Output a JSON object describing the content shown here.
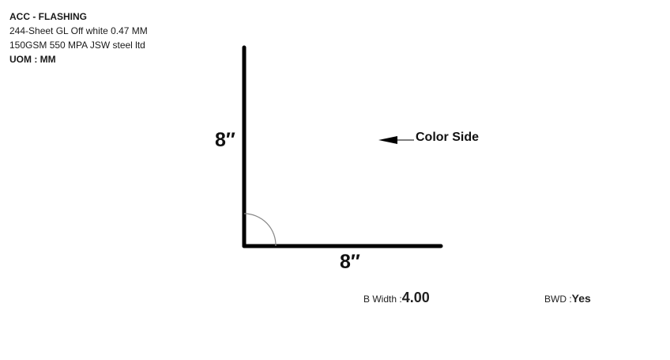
{
  "product": {
    "title": "ACC - FLASHING",
    "description": "244-Sheet GL Off white 0.47 MM 150GSM 550 MPA JSW steel ltd",
    "uom_label": "UOM :",
    "uom_value": "MM"
  },
  "diagram": {
    "vertical_dimension": "8″",
    "horizontal_dimension": "8″",
    "color_side_label": "Color Side",
    "angle_degrees": 90
  },
  "specs": {
    "b_width_label": "B Width :",
    "b_width_value": "4.00",
    "bwd_label": "BWD :",
    "bwd_value": "Yes"
  },
  "colors": {
    "stroke": "#000000",
    "angle_arc": "#888888"
  }
}
